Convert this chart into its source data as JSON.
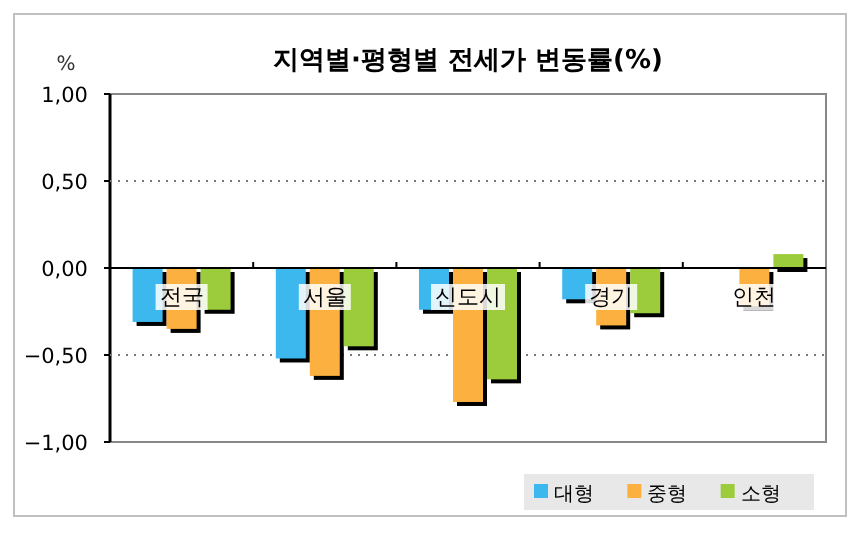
{
  "chart_data": {
    "type": "bar",
    "title": "지역별·평형별 전세가 변동률(%)",
    "ylabel": "%",
    "categories": [
      "전국",
      "서울",
      "신도시",
      "경기",
      "인천"
    ],
    "series": [
      {
        "name": "대형",
        "color": "#3db8ee",
        "values": [
          -0.31,
          -0.52,
          -0.24,
          -0.18,
          0
        ]
      },
      {
        "name": "중형",
        "color": "#fbb040",
        "values": [
          -0.35,
          -0.62,
          -0.77,
          -0.33,
          -0.22
        ]
      },
      {
        "name": "소형",
        "color": "#9ccc3c",
        "values": [
          -0.24,
          -0.45,
          -0.64,
          -0.26,
          0.08
        ]
      }
    ],
    "ylim": [
      -1,
      1
    ],
    "yticks": [
      {
        "value": -1,
        "label": "−1,00"
      },
      {
        "value": -0.5,
        "label": "−0,50"
      },
      {
        "value": 0,
        "label": "0,00"
      },
      {
        "value": 0.5,
        "label": "0,50"
      },
      {
        "value": 1,
        "label": "1,00"
      }
    ],
    "grid": "y",
    "legend": "bottom right"
  }
}
